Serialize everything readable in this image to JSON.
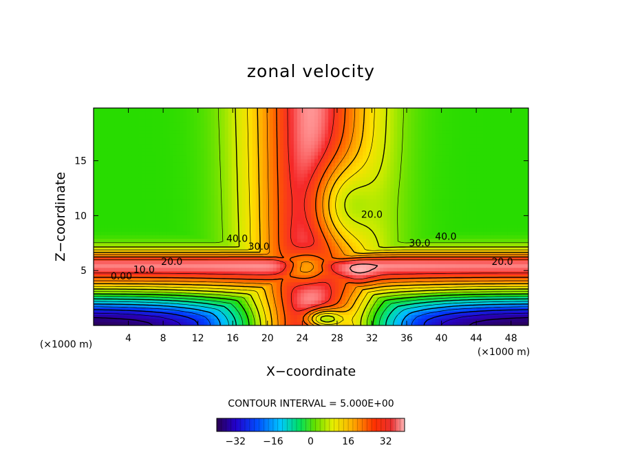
{
  "chart_data": {
    "type": "heatmap",
    "title": "zonal velocity",
    "xlabel": "X−coordinate",
    "ylabel": "Z−coordinate",
    "x_unit_left": "(×1000 m)",
    "x_unit_right": "(×1000 m)",
    "xlim": [
      0,
      50
    ],
    "ylim": [
      0,
      19.8
    ],
    "x_ticks": [
      4,
      8,
      12,
      16,
      20,
      24,
      28,
      32,
      36,
      40,
      44,
      48
    ],
    "x_tick_labels": [
      "4",
      "8",
      "12",
      "16",
      "20",
      "24",
      "28",
      "32",
      "36",
      "40",
      "44",
      "48"
    ],
    "y_ticks": [
      5,
      10,
      15
    ],
    "y_tick_labels": [
      "5",
      "10",
      "15"
    ],
    "contour_interval_text": "CONTOUR INTERVAL = 5.000E+00",
    "contour_labels": [
      {
        "text": "40.0",
        "x": 16.5,
        "y": 7.6
      },
      {
        "text": "30.0",
        "x": 19.0,
        "y": 6.9
      },
      {
        "text": "20.0",
        "x": 9.0,
        "y": 5.5
      },
      {
        "text": "10.0",
        "x": 5.8,
        "y": 4.8
      },
      {
        "text": "0.00",
        "x": 3.2,
        "y": 4.2
      },
      {
        "text": "20.0",
        "x": 32.0,
        "y": 9.8
      },
      {
        "text": "30.0",
        "x": 37.5,
        "y": 7.2
      },
      {
        "text": "40.0",
        "x": 40.5,
        "y": 7.8
      },
      {
        "text": "20.0",
        "x": 47.0,
        "y": 5.5
      }
    ],
    "colorbar": {
      "range": [
        -40,
        40
      ],
      "ticks": [
        -32,
        -16,
        0,
        16,
        32
      ],
      "tick_labels": [
        "−32",
        "−16",
        "0",
        "16",
        "32"
      ]
    }
  }
}
